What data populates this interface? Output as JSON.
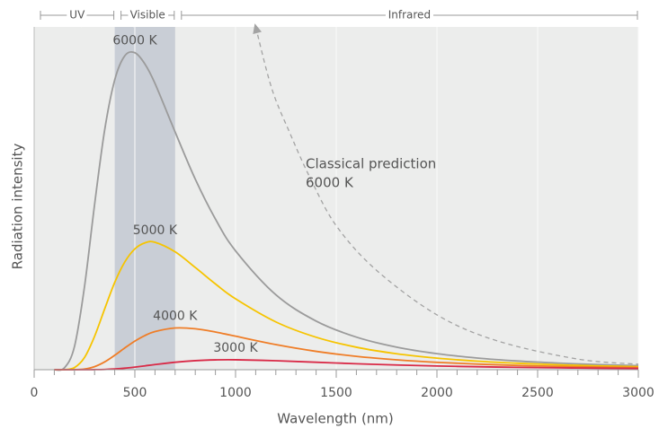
{
  "chart_data": {
    "type": "line",
    "xlabel": "Wavelength  (nm)",
    "ylabel": "Radiation  intensity",
    "xlim": [
      0,
      3000
    ],
    "ylim": [
      0,
      100
    ],
    "xticks": [
      0,
      500,
      1000,
      1500,
      2000,
      2500,
      3000
    ],
    "xminorticks": [
      100,
      200,
      300,
      400,
      600,
      700,
      800,
      900,
      1100,
      1200,
      1300,
      1400,
      1600,
      1700,
      1800,
      1900,
      2100,
      2200,
      2300,
      2400,
      2600,
      2700,
      2800,
      2900
    ],
    "grid": true,
    "regions": [
      {
        "label": "UV",
        "range": [
          0,
          400
        ]
      },
      {
        "label": "Visible",
        "range": [
          400,
          700
        ],
        "shaded": true,
        "color": "#c9ced6"
      },
      {
        "label": "Infrared",
        "range": [
          700,
          3000
        ]
      }
    ],
    "series": [
      {
        "name": "6000 K",
        "color": "#9b9b9b",
        "x": [
          100,
          150,
          200,
          250,
          300,
          350,
          400,
          450,
          500,
          550,
          600,
          700,
          800,
          900,
          1000,
          1200,
          1400,
          1600,
          1800,
          2000,
          2200,
          2400,
          2600,
          2800,
          3000
        ],
        "values": [
          0,
          0.52,
          6.72,
          24.24,
          48.18,
          69.91,
          84.54,
          91.58,
          92.48,
          89.18,
          83.51,
          69.34,
          55.59,
          43.96,
          34.68,
          21.87,
          14.19,
          9.51,
          6.58,
          4.68,
          3.41,
          2.54,
          1.93,
          1.49,
          1.17
        ]
      },
      {
        "name": "5000 K",
        "color": "#f6c400",
        "x": [
          100,
          150,
          200,
          250,
          300,
          350,
          400,
          450,
          500,
          550,
          600,
          700,
          800,
          900,
          1000,
          1200,
          1400,
          1600,
          1800,
          2000,
          2200,
          2400,
          2600,
          2800,
          3000
        ],
        "values": [
          0,
          0.02,
          0.61,
          3.56,
          9.74,
          17.73,
          25.46,
          31.43,
          35.24,
          37.01,
          37.17,
          34.38,
          29.82,
          25.03,
          20.67,
          13.94,
          9.47,
          6.56,
          4.65,
          3.37,
          2.49,
          1.88,
          1.44,
          1.12,
          0.89
        ]
      },
      {
        "name": "4000 K",
        "color": "#ef7d27",
        "x": [
          100,
          150,
          200,
          250,
          300,
          350,
          400,
          450,
          500,
          550,
          600,
          700,
          800,
          900,
          1000,
          1200,
          1400,
          1600,
          1800,
          2000,
          2200,
          2400,
          2600,
          2800,
          3000
        ],
        "values": [
          0,
          0,
          0.02,
          0.2,
          0.89,
          2.27,
          4.21,
          6.34,
          8.34,
          9.97,
          11.13,
          12.17,
          11.94,
          11,
          9.77,
          7.32,
          5.35,
          3.9,
          2.88,
          2.15,
          1.63,
          1.25,
          0.98,
          0.77,
          0.62
        ]
      },
      {
        "name": "3000 K",
        "color": "#d92a47",
        "x": [
          100,
          150,
          200,
          250,
          300,
          350,
          400,
          450,
          500,
          550,
          600,
          700,
          800,
          900,
          1000,
          1200,
          1400,
          1600,
          1800,
          2000,
          2200,
          2400,
          2600,
          2800,
          3000
        ],
        "values": [
          0,
          0,
          0,
          0,
          0.02,
          0.07,
          0.21,
          0.44,
          0.76,
          1.12,
          1.51,
          2.18,
          2.64,
          2.86,
          2.89,
          2.61,
          2.17,
          1.74,
          1.37,
          1.08,
          0.86,
          0.68,
          0.55,
          0.44,
          0.36
        ]
      },
      {
        "name_lines": [
          "Classical prediction",
          "6000 K"
        ],
        "color": "#a3a3a3",
        "dashed": true,
        "arrow": true,
        "x": [
          1100,
          1180,
          1270,
          1370,
          1500,
          1700,
          2000,
          2300,
          2700,
          3000
        ],
        "values": [
          100,
          82,
          69,
          56,
          42,
          29,
          16,
          8.4,
          3.1,
          1.6
        ]
      }
    ]
  }
}
